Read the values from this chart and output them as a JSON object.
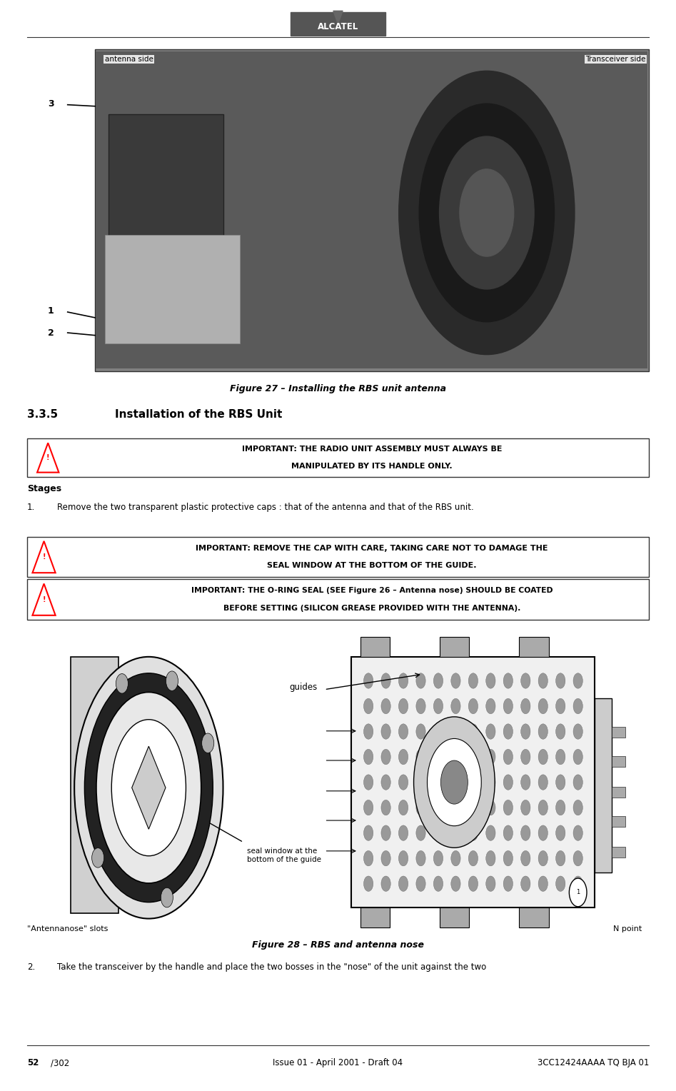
{
  "page_width": 9.47,
  "page_height": 15.28,
  "bg_color": "#ffffff",
  "header": {
    "logo_text": "ALCATEL",
    "logo_bg": "#555555",
    "logo_text_color": "#ffffff",
    "arrow_color": "#555555"
  },
  "figure27": {
    "caption": "Figure 27 – Installing the RBS unit antenna",
    "label_antenna": "antenna side",
    "label_transceiver": "Transceiver side",
    "labels": [
      "3",
      "1",
      "2"
    ]
  },
  "section": {
    "number": "3.3.5",
    "title": "Installation of the RBS Unit"
  },
  "important1": {
    "line1": "IMPORTANT: THE RADIO UNIT ASSEMBLY MUST ALWAYS BE",
    "line2": "MANIPULATED BY ITS HANDLE ONLY."
  },
  "stages_label": "Stages",
  "step1": "Remove the two transparent plastic protective caps : that of the antenna and that of the RBS unit.",
  "important2": {
    "line1": "IMPORTANT: REMOVE THE CAP WITH CARE, TAKING CARE NOT TO DAMAGE THE",
    "line2": "SEAL WINDOW AT THE BOTTOM OF THE GUIDE."
  },
  "important3": {
    "line1": "IMPORTANT: THE O-RING SEAL (SEE Figure 26 – Antenna nose) SHOULD BE COATED",
    "line2": "BEFORE SETTING (SILICON GREASE PROVIDED WITH THE ANTENNA)."
  },
  "figure28": {
    "caption": "Figure 28 – RBS and antenna nose",
    "label_slots": "\"Antennanose\" slots",
    "label_npoint": "N point",
    "label_guides": "guides",
    "label_seal": "seal window at the\nbottom of the guide"
  },
  "step2": "Take the transceiver by the handle and place the two bosses in the \"nose\" of the unit against the two",
  "footer": {
    "left_bold": "52",
    "left_rest": "/302",
    "center": "Issue 01 - April 2001 - Draft 04",
    "right": "3CC12424AAAA TQ BJA 01"
  }
}
